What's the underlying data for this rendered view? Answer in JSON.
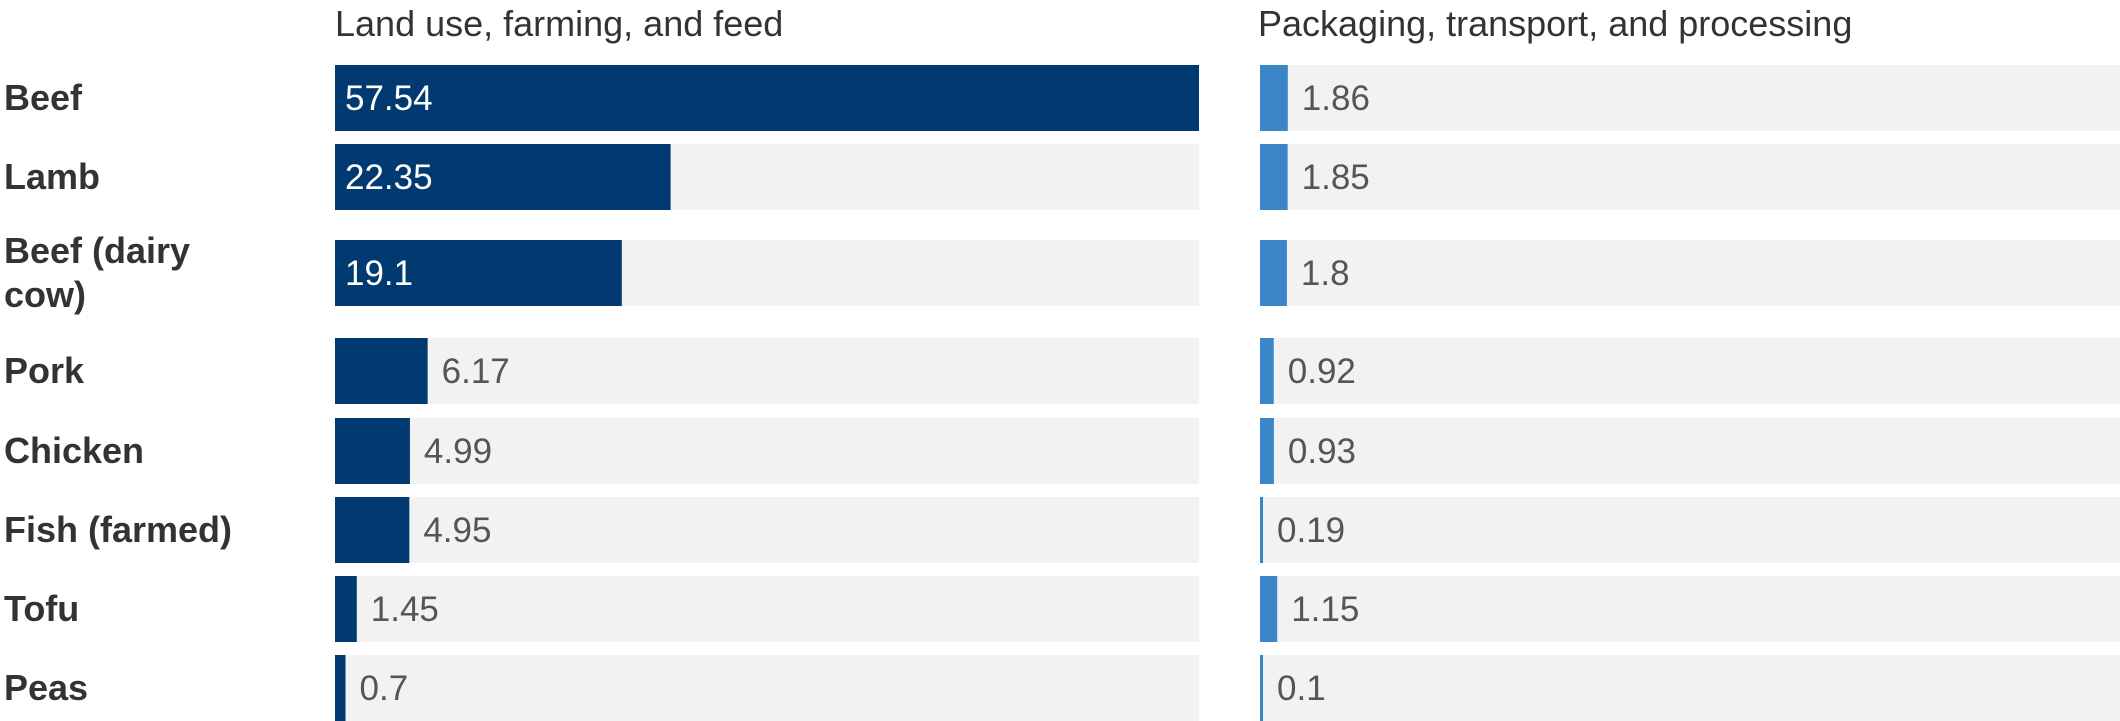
{
  "chart_data": {
    "type": "bar",
    "orientation": "horizontal",
    "categories": [
      "Beef",
      "Lamb",
      "Beef (dairy cow)",
      "Pork",
      "Chicken",
      "Fish (farmed)",
      "Tofu",
      "Peas"
    ],
    "category_lines": [
      [
        "Beef"
      ],
      [
        "Lamb"
      ],
      [
        "Beef (dairy",
        "cow)"
      ],
      [
        "Pork"
      ],
      [
        "Chicken"
      ],
      [
        "Fish (farmed)"
      ],
      [
        "Tofu"
      ],
      [
        "Peas"
      ]
    ],
    "series": [
      {
        "name": "Land use, farming, and feed",
        "color": "#003a70",
        "values": [
          57.54,
          22.35,
          19.1,
          6.17,
          4.99,
          4.95,
          1.45,
          0.7
        ],
        "value_labels": [
          "57.54",
          "22.35",
          "19.1",
          "6.17",
          "4.99",
          "4.95",
          "1.45",
          "0.7"
        ],
        "xlim": [
          0,
          57.54
        ]
      },
      {
        "name": "Packaging, transport, and processing",
        "color": "#3a86c8",
        "values": [
          1.86,
          1.85,
          1.8,
          0.92,
          0.93,
          0.19,
          1.15,
          0.1
        ],
        "value_labels": [
          "1.86",
          "1.85",
          "1.8",
          "0.92",
          "0.93",
          "0.19",
          "1.15",
          "0.1"
        ],
        "xlim": [
          0,
          57.54
        ]
      }
    ],
    "track_color": "#f2f2f2",
    "grid": false,
    "legend": "none"
  }
}
